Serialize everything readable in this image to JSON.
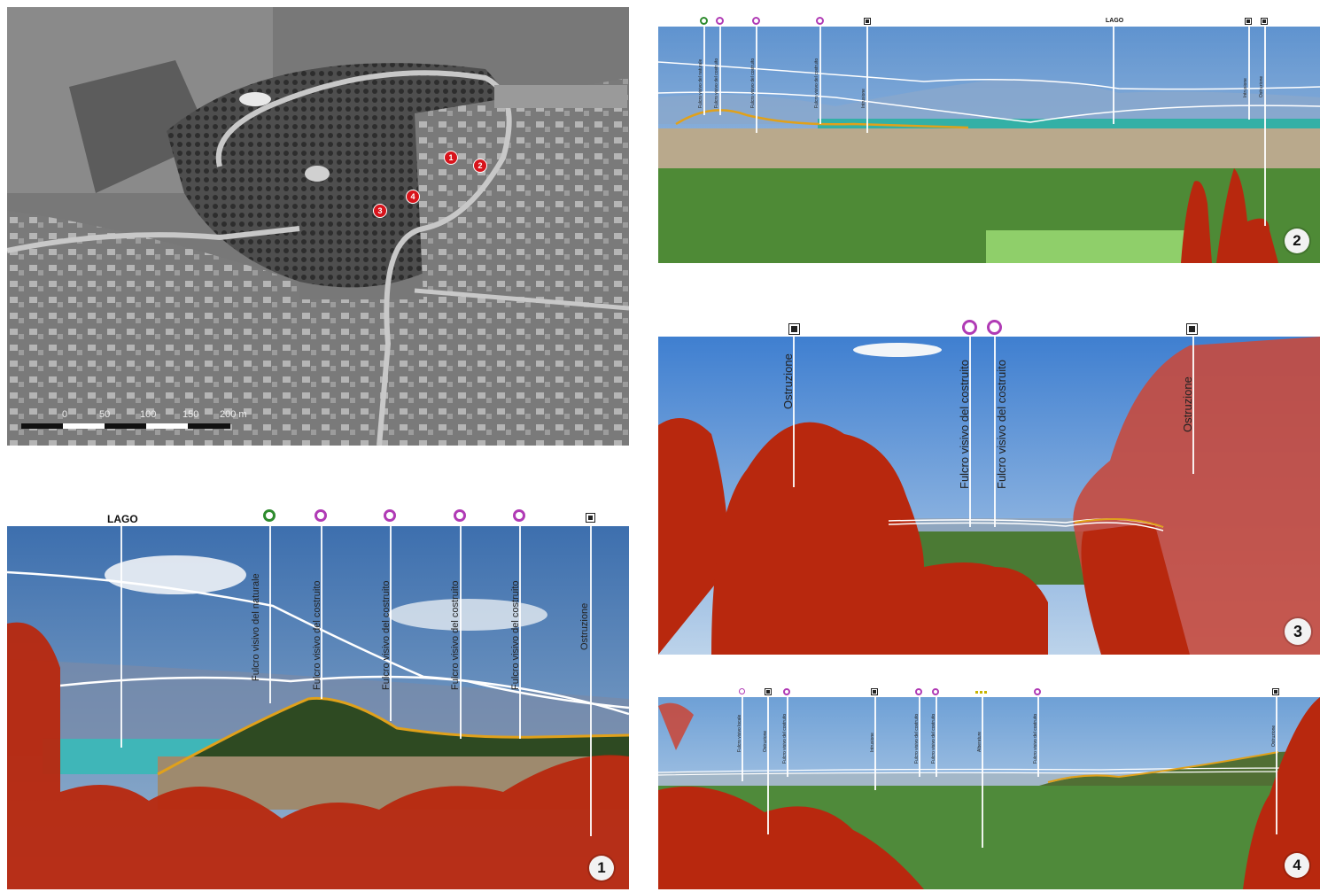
{
  "map": {
    "scale_labels": [
      "0",
      "50",
      "100",
      "150",
      "200 m"
    ],
    "markers": [
      "1",
      "2",
      "3",
      "4"
    ]
  },
  "panel1": {
    "number": "1",
    "lago_label": "LAGO",
    "annotations": [
      "Fulcro visivo del naturale",
      "Fulcro visivo del costruito",
      "Fulcro visivo del costruito",
      "Fulcro visivo del costruito",
      "Fulcro visivo del costruito",
      "Ostruzione"
    ]
  },
  "panel2": {
    "number": "2",
    "lago_label": "LAGO",
    "annotations": [
      "Fulcro visivo del naturale",
      "Fulcro visivo del costruito",
      "Fulcro visivo del costruito",
      "Fulcro visivo del costruito",
      "Intrusione",
      "Intrusione",
      "Ostruzione"
    ]
  },
  "panel3": {
    "number": "3",
    "annotations": [
      "Ostruzione",
      "Fulcro visivo del costruito",
      "Fulcro visivo del costruito",
      "Ostruzione"
    ]
  },
  "panel4": {
    "number": "4",
    "annotations": [
      "Fulcro visivo locale",
      "Ostruzione",
      "Fulcro visivo del costruito",
      "Intrusione",
      "Fulcro visivo del costruito",
      "Fulcro visivo del costruito",
      "Alberature",
      "Fulcro visivo del costruito",
      "Ostruzione"
    ]
  },
  "colors": {
    "obstruction": "#b8280e",
    "lake": "#3fb6b8",
    "ridge": "#e0a11b",
    "fulcro_costruito": "#b03bb5",
    "fulcro_naturale": "#2e8b2e"
  }
}
